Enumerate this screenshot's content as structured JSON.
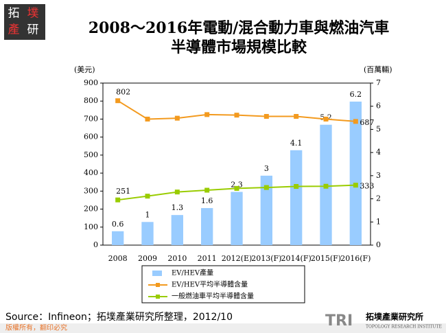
{
  "header": {
    "logo_chars": [
      "拓",
      "墣",
      "產",
      "研"
    ]
  },
  "chart_data": {
    "type": "bar",
    "title": [
      "2008～2016年電動/混合動力車與燃油汽車",
      "半導體市場規模比較"
    ],
    "y_label": "(美元)",
    "y2_label": "(百萬輛)",
    "categories": [
      "2008",
      "2009",
      "2010",
      "2011",
      "2012(E)",
      "2013(F)",
      "2014(F)",
      "2015(F)",
      "2016(F)"
    ],
    "ylim": [
      0,
      900
    ],
    "yticks": [
      0,
      100,
      200,
      300,
      400,
      500,
      600,
      700,
      800,
      900
    ],
    "y2lim": [
      0,
      7
    ],
    "y2ticks": [
      0,
      1,
      2,
      3,
      4,
      5,
      6,
      7
    ],
    "series": [
      {
        "name": "EV/HEV產量",
        "type": "bar",
        "axis": "y2",
        "color": "#99ccff",
        "label_points": "all",
        "values": [
          0.6,
          1,
          1.3,
          1.6,
          2.3,
          3,
          4.1,
          5.2,
          6.2
        ]
      },
      {
        "name": "EV/HEV平均半導體含量",
        "type": "line",
        "color": "#f39a1e",
        "label_points": "ends",
        "values": [
          802,
          700,
          705,
          725,
          722,
          715,
          715,
          700,
          687
        ]
      },
      {
        "name": "一般燃油車平均半導體含量",
        "type": "line",
        "color": "#99cc00",
        "label_points": "ends",
        "values": [
          251,
          272,
          295,
          305,
          315,
          320,
          326,
          327,
          333
        ]
      }
    ]
  },
  "footer": {
    "source": "Source：Infineon；拓墣產業研究所整理，2012/10",
    "copyright": "版權所有，翻印必究",
    "brand": "TRI",
    "brand_name": "拓墣產業研究所",
    "brand_sub": "TOPOLOGY RESEARCH INSTITUTE"
  }
}
